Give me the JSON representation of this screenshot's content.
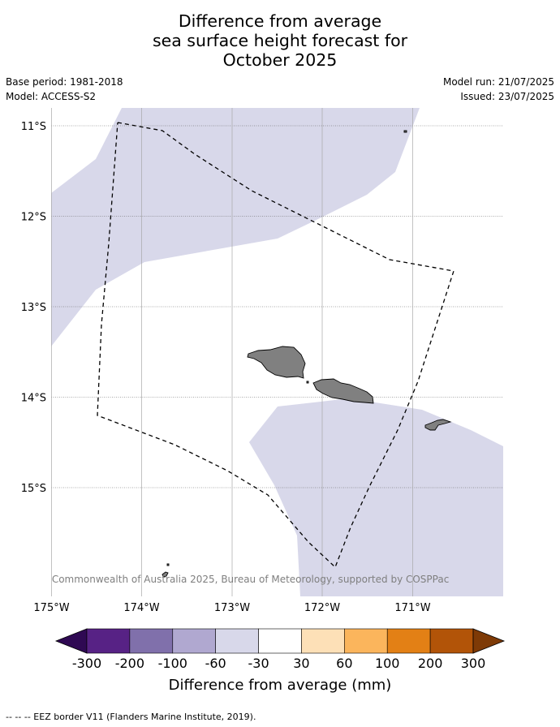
{
  "title": {
    "line1": "Difference from average",
    "line2": "sea surface height forecast for",
    "line3": "October 2025"
  },
  "meta": {
    "base_period": "Base period: 1981-2018",
    "model": "Model: ACCESS-S2",
    "model_run": "Model run: 21/07/2025",
    "issued": "Issued: 23/07/2025"
  },
  "map": {
    "lon_range": [
      -175.0,
      -170.0
    ],
    "lat_range": [
      -16.3,
      -10.9
    ],
    "lat_ticks": [
      "11°S",
      "12°S",
      "13°S",
      "14°S",
      "15°S"
    ],
    "lon_ticks": [
      "175°W",
      "174°W",
      "173°W",
      "172°W",
      "171°W"
    ],
    "copyright": "© Commonwealth of Australia 2025, Bureau of Meteorology, supported by COSPPac",
    "ocean_color": "#ffffff",
    "anomaly_fill_color": "#d8d8ea",
    "anomaly_fill_class": "-60 to -30 mm",
    "land_color": "#808080"
  },
  "colorbar": {
    "title": "Difference from average (mm)",
    "labels": [
      "-300",
      "-200",
      "-100",
      "-60",
      "-30",
      "30",
      "60",
      "100",
      "200",
      "300"
    ],
    "colors": [
      "#572285",
      "#8070ab",
      "#b0a8d0",
      "#d8d8ea",
      "#ffffff",
      "#fde0b7",
      "#fbb55c",
      "#e38015",
      "#b25408"
    ],
    "extend_low_color": "#2f0953",
    "extend_high_color": "#7e3a06"
  },
  "footnote": "--  --  -- EEZ border V11 (Flanders Marine Institute, 2019)."
}
